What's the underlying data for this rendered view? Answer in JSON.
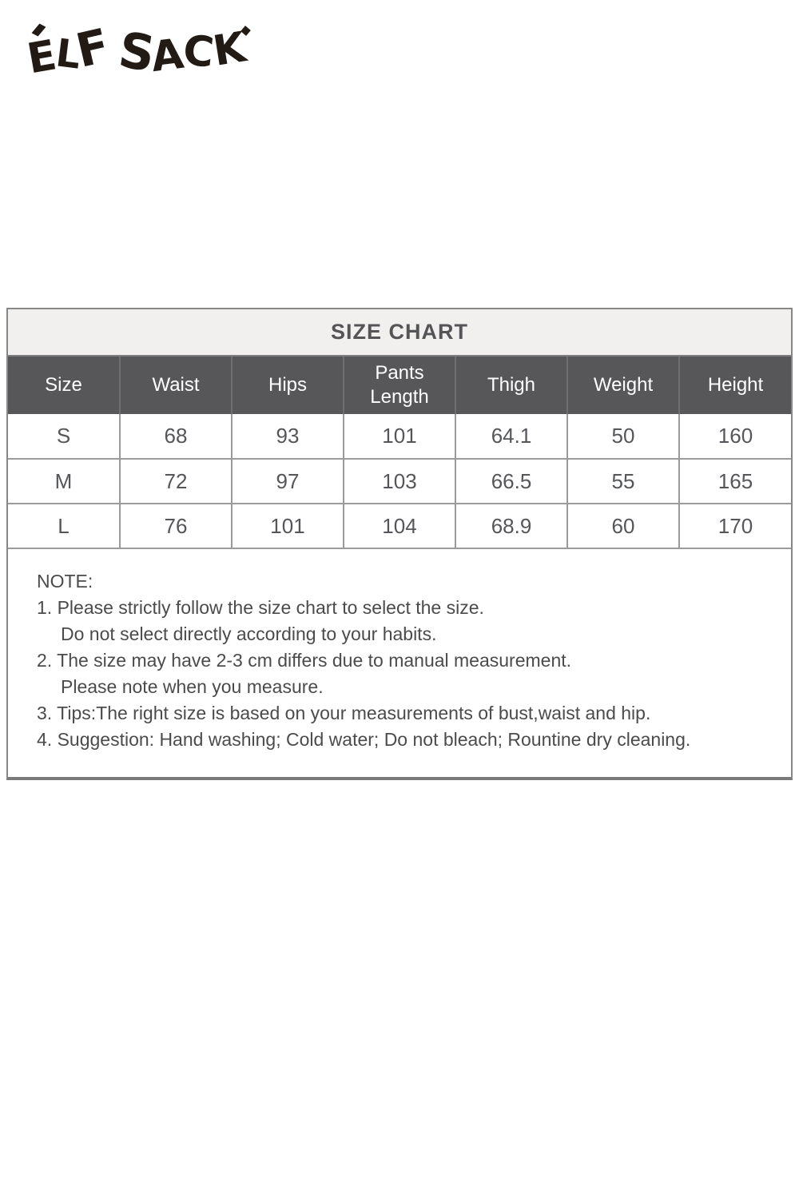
{
  "brand": {
    "logo_text": "ELF SACK",
    "logo_letters": [
      "E",
      "L",
      "F",
      "S",
      "A",
      "C",
      "K"
    ]
  },
  "chart_data": {
    "type": "table",
    "title": "SIZE CHART",
    "columns": [
      "Size",
      "Waist",
      "Hips",
      "Pants Length",
      "Thigh",
      "Weight",
      "Height"
    ],
    "rows": [
      [
        "S",
        "68",
        "93",
        "101",
        "64.1",
        "50",
        "160"
      ],
      [
        "M",
        "72",
        "97",
        "103",
        "66.5",
        "55",
        "165"
      ],
      [
        "L",
        "76",
        "101",
        "104",
        "68.9",
        "60",
        "170"
      ]
    ]
  },
  "notes": {
    "heading": "NOTE:",
    "lines": [
      {
        "text": "1. Please strictly follow the size chart to select the size.",
        "indent": false
      },
      {
        "text": "Do not select directly according to your habits.",
        "indent": true
      },
      {
        "text": "2. The size may have 2-3 cm differs due to manual measurement.",
        "indent": false
      },
      {
        "text": "Please note when you measure.",
        "indent": true
      },
      {
        "text": "3. Tips:The right size is based on your measurements of bust,waist and hip.",
        "indent": false
      },
      {
        "text": "4. Suggestion: Hand washing; Cold water; Do not bleach; Rountine dry cleaning.",
        "indent": false
      }
    ]
  },
  "colors": {
    "logo": "#221a15",
    "title_bg": "#f1f0ef",
    "header_bg": "#57575a",
    "header_text": "#ffffff",
    "cell_text": "#55565a",
    "border": "#9b9b9b",
    "note_text": "#4b4b4c"
  }
}
